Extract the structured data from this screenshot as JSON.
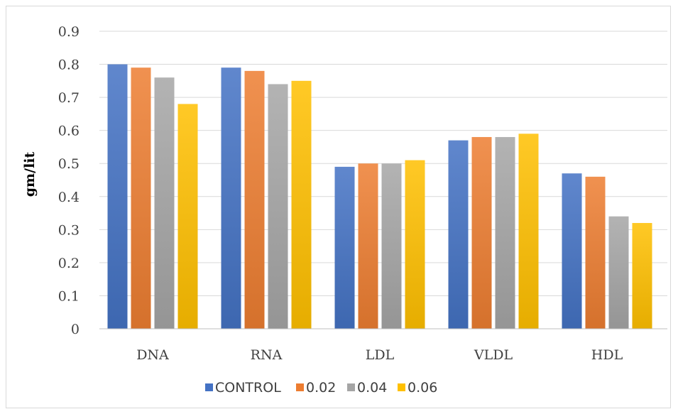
{
  "chart_data": {
    "type": "bar",
    "title": "",
    "xlabel": "",
    "ylabel": "gm/lit",
    "ylim": [
      0,
      0.9
    ],
    "yticks": [
      "0",
      "0.1",
      "0.2",
      "0.3",
      "0.4",
      "0.5",
      "0.6",
      "0.7",
      "0.8",
      "0.9"
    ],
    "grid": true,
    "legend_position": "bottom",
    "categories": [
      "DNA",
      "RNA",
      "LDL",
      "VLDL",
      "HDL"
    ],
    "series": [
      {
        "name": "CONTROL",
        "color": "#4472c4",
        "values": [
          0.8,
          0.79,
          0.49,
          0.57,
          0.47
        ]
      },
      {
        "name": "0.02",
        "color": "#ed7d31",
        "values": [
          0.79,
          0.78,
          0.5,
          0.58,
          0.46
        ]
      },
      {
        "name": "0.04",
        "color": "#a5a5a5",
        "values": [
          0.76,
          0.74,
          0.5,
          0.58,
          0.34
        ]
      },
      {
        "name": "0.06",
        "color": "#ffc000",
        "values": [
          0.68,
          0.75,
          0.51,
          0.59,
          0.32
        ]
      }
    ]
  }
}
